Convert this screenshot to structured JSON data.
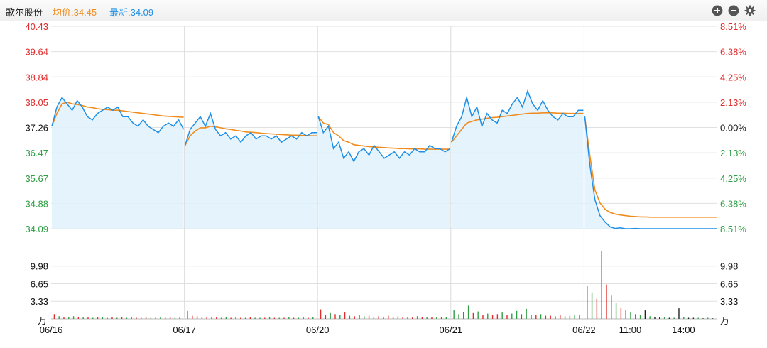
{
  "header": {
    "stock_name": "歌尔股份",
    "avg_label": "均价:34.45",
    "latest_label": "最新:34.09",
    "zoom_in": "zoom-in",
    "zoom_out": "zoom-out",
    "settings": "settings"
  },
  "colors": {
    "up": "#e02c2c",
    "down": "#2f9e44",
    "price": "#1e8fe6",
    "avg": "#f08c1e",
    "grid": "#e0e0e0"
  },
  "chart_data": {
    "type": "line",
    "price_ticks": [
      "40.43",
      "39.64",
      "38.84",
      "38.05",
      "37.26",
      "36.47",
      "35.67",
      "34.88",
      "34.09"
    ],
    "pct_ticks": [
      "8.51%",
      "6.38%",
      "4.25%",
      "2.13%",
      "0.00%",
      "2.13%",
      "4.25%",
      "6.38%",
      "8.51%"
    ],
    "prev_close": 37.26,
    "price_range": [
      34.09,
      40.43
    ],
    "volume_ticks": [
      "9.98",
      "6.65",
      "3.33"
    ],
    "volume_unit": "万",
    "volume_range": [
      0,
      13.3
    ],
    "x_labels": [
      "06/16",
      "06/17",
      "06/20",
      "06/21",
      "06/22",
      "11:00",
      "14:00"
    ],
    "days": [
      {
        "date": "06/16",
        "price": [
          37.3,
          37.9,
          38.2,
          38.0,
          37.8,
          38.1,
          37.9,
          37.6,
          37.5,
          37.7,
          37.8,
          37.9,
          37.8,
          37.9,
          37.6,
          37.6,
          37.4,
          37.3,
          37.5,
          37.3,
          37.2,
          37.1,
          37.3,
          37.4,
          37.3,
          37.5,
          37.2
        ],
        "avg": [
          37.3,
          37.7,
          38.0,
          38.05,
          38.0,
          37.98,
          37.95,
          37.9,
          37.88,
          37.85,
          37.83,
          37.82,
          37.8,
          37.8,
          37.78,
          37.76,
          37.74,
          37.72,
          37.7,
          37.68,
          37.66,
          37.64,
          37.62,
          37.61,
          37.6,
          37.59,
          37.58
        ]
      },
      {
        "date": "06/17",
        "price": [
          36.7,
          37.2,
          37.4,
          37.6,
          37.3,
          37.7,
          37.2,
          37.0,
          37.1,
          36.9,
          37.0,
          36.8,
          37.0,
          37.1,
          36.9,
          37.0,
          37.0,
          36.9,
          37.0,
          36.8,
          36.9,
          37.0,
          36.9,
          37.1,
          37.0,
          37.1,
          37.1
        ],
        "avg": [
          36.7,
          37.0,
          37.15,
          37.25,
          37.25,
          37.3,
          37.28,
          37.25,
          37.22,
          37.2,
          37.17,
          37.15,
          37.12,
          37.11,
          37.1,
          37.08,
          37.07,
          37.06,
          37.05,
          37.04,
          37.03,
          37.02,
          37.02,
          37.01,
          37.01,
          37.0,
          37.0
        ]
      },
      {
        "date": "06/20",
        "price": [
          37.6,
          37.1,
          37.3,
          36.6,
          36.8,
          36.3,
          36.5,
          36.2,
          36.5,
          36.6,
          36.4,
          36.7,
          36.5,
          36.3,
          36.4,
          36.5,
          36.3,
          36.5,
          36.4,
          36.6,
          36.5,
          36.5,
          36.7,
          36.6,
          36.6,
          36.5,
          36.6
        ],
        "avg": [
          37.6,
          37.4,
          37.35,
          37.1,
          37.0,
          36.85,
          36.8,
          36.72,
          36.7,
          36.68,
          36.66,
          36.65,
          36.64,
          36.63,
          36.62,
          36.61,
          36.6,
          36.6,
          36.59,
          36.59,
          36.59,
          36.58,
          36.58,
          36.58,
          36.58,
          36.58,
          36.58
        ]
      },
      {
        "date": "06/21",
        "price": [
          36.8,
          37.3,
          37.6,
          38.2,
          37.6,
          37.9,
          37.3,
          37.7,
          37.5,
          37.4,
          37.8,
          37.7,
          38.0,
          38.2,
          37.9,
          38.4,
          38.0,
          37.8,
          38.1,
          37.8,
          37.6,
          37.5,
          37.7,
          37.6,
          37.6,
          37.8,
          37.8
        ],
        "avg": [
          36.8,
          37.0,
          37.2,
          37.4,
          37.45,
          37.5,
          37.52,
          37.55,
          37.57,
          37.58,
          37.6,
          37.62,
          37.64,
          37.66,
          37.68,
          37.7,
          37.71,
          37.71,
          37.72,
          37.72,
          37.72,
          37.71,
          37.71,
          37.7,
          37.7,
          37.7,
          37.7
        ]
      },
      {
        "date": "06/22",
        "price": [
          37.6,
          36.1,
          35.0,
          34.5,
          34.3,
          34.15,
          34.1,
          34.12,
          34.09,
          34.09,
          34.1,
          34.09,
          34.09,
          34.09,
          34.09,
          34.09,
          34.09,
          34.09,
          34.09,
          34.09,
          34.09,
          34.09,
          34.09,
          34.09,
          34.09,
          34.09,
          34.09
        ],
        "avg": [
          37.6,
          36.4,
          35.3,
          34.9,
          34.7,
          34.6,
          34.55,
          34.52,
          34.5,
          34.48,
          34.47,
          34.46,
          34.46,
          34.45,
          34.45,
          34.45,
          34.45,
          34.45,
          34.45,
          34.45,
          34.45,
          34.45,
          34.45,
          34.45,
          34.45,
          34.45,
          34.45
        ]
      }
    ],
    "volume": [
      {
        "v": [
          0.9,
          0.5,
          0.4,
          0.3,
          0.5,
          0.3,
          0.4,
          0.3,
          0.2,
          0.3,
          0.4,
          0.2,
          0.3,
          0.2,
          0.3,
          0.2,
          0.3,
          0.2,
          0.2,
          0.3,
          0.2,
          0.2,
          0.3,
          0.2,
          0.3,
          0.2,
          0.4
        ],
        "d": [
          1,
          0,
          1,
          0,
          0,
          1,
          0,
          1,
          0,
          1,
          0,
          0,
          1,
          0,
          1,
          0,
          0,
          1,
          0,
          1,
          0,
          1,
          0,
          0,
          1,
          0,
          1
        ]
      },
      {
        "v": [
          1.5,
          0.6,
          0.5,
          0.4,
          0.3,
          0.4,
          0.3,
          0.2,
          0.3,
          0.2,
          0.3,
          0.2,
          0.2,
          0.3,
          0.2,
          0.2,
          0.2,
          0.3,
          0.2,
          0.2,
          0.2,
          0.3,
          0.2,
          0.2,
          0.3,
          0.2,
          0.3
        ],
        "d": [
          0,
          1,
          1,
          0,
          1,
          0,
          1,
          0,
          0,
          1,
          0,
          1,
          0,
          1,
          0,
          0,
          1,
          0,
          1,
          0,
          1,
          0,
          1,
          0,
          0,
          1,
          0
        ]
      },
      {
        "v": [
          1.8,
          0.8,
          1.1,
          0.9,
          0.7,
          1.2,
          0.6,
          0.5,
          0.7,
          0.5,
          0.6,
          0.4,
          0.5,
          0.4,
          0.6,
          0.4,
          0.5,
          0.3,
          0.4,
          0.3,
          0.5,
          0.3,
          0.4,
          0.3,
          0.3,
          0.4,
          0.3
        ],
        "d": [
          1,
          1,
          0,
          1,
          0,
          1,
          0,
          1,
          1,
          0,
          1,
          0,
          1,
          0,
          1,
          1,
          0,
          1,
          0,
          1,
          0,
          1,
          0,
          1,
          0,
          1,
          0
        ]
      },
      {
        "v": [
          1.6,
          0.9,
          1.3,
          2.5,
          1.1,
          1.4,
          0.8,
          1.0,
          0.7,
          0.9,
          1.2,
          0.8,
          1.0,
          1.5,
          0.9,
          1.9,
          0.8,
          0.7,
          0.9,
          0.6,
          0.6,
          0.5,
          0.7,
          0.5,
          0.6,
          0.7,
          0.8
        ],
        "d": [
          0,
          0,
          1,
          0,
          1,
          0,
          1,
          0,
          1,
          1,
          0,
          1,
          0,
          0,
          1,
          0,
          1,
          1,
          0,
          1,
          1,
          0,
          1,
          0,
          1,
          0,
          0
        ]
      },
      {
        "v": [
          6.2,
          5.0,
          3.8,
          12.8,
          6.5,
          4.4,
          3.0,
          2.1,
          1.6,
          1.2,
          0.9,
          0.7,
          1.6,
          0.5,
          0.4,
          0.3,
          0.3,
          0.2,
          0.2,
          2.0,
          0.3,
          0.2,
          0.2,
          0.2,
          0.1,
          0.2,
          0.1
        ],
        "d": [
          1,
          0,
          1,
          1,
          1,
          1,
          0,
          1,
          1,
          0,
          1,
          0,
          2,
          0,
          2,
          2,
          0,
          2,
          0,
          2,
          0,
          2,
          2,
          0,
          2,
          0,
          2
        ]
      }
    ]
  }
}
